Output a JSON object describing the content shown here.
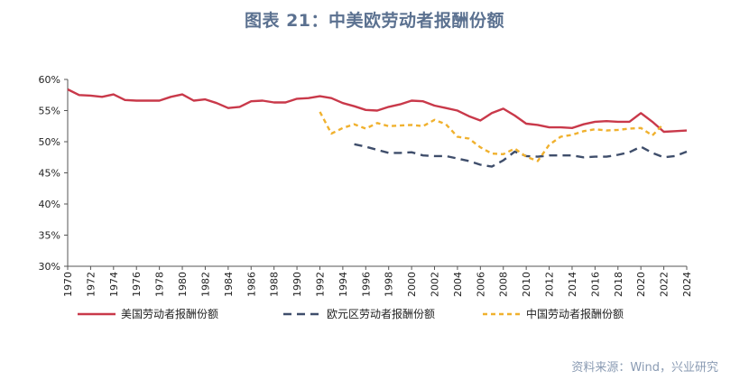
{
  "chart_data": {
    "type": "line",
    "title": "图表 21：中美欧劳动者报酬份额",
    "xlabel": "",
    "ylabel": "",
    "ylim": [
      30,
      60
    ],
    "y_tick_labels": [
      "30%",
      "35%",
      "40%",
      "45%",
      "50%",
      "55%",
      "60%"
    ],
    "y_ticks": [
      30,
      35,
      40,
      45,
      50,
      55,
      60
    ],
    "x_ticks": [
      1970,
      1972,
      1974,
      1976,
      1978,
      1980,
      1982,
      1984,
      1986,
      1988,
      1990,
      1992,
      1994,
      1996,
      1998,
      2000,
      2002,
      2004,
      2006,
      2008,
      2010,
      2012,
      2014,
      2016,
      2018,
      2020,
      2022,
      2024
    ],
    "xlim": [
      1970,
      2024
    ],
    "grid": false,
    "legend_position": "bottom",
    "series": [
      {
        "name": "美国劳动者报酬份额",
        "color": "#c9394a",
        "dash": "solid",
        "x": [
          1970,
          1971,
          1972,
          1973,
          1974,
          1975,
          1976,
          1977,
          1978,
          1979,
          1980,
          1981,
          1982,
          1983,
          1984,
          1985,
          1986,
          1987,
          1988,
          1989,
          1990,
          1991,
          1992,
          1993,
          1994,
          1995,
          1996,
          1997,
          1998,
          1999,
          2000,
          2001,
          2002,
          2003,
          2004,
          2005,
          2006,
          2007,
          2008,
          2009,
          2010,
          2011,
          2012,
          2013,
          2014,
          2015,
          2016,
          2017,
          2018,
          2019,
          2020,
          2021,
          2022,
          2023,
          2024
        ],
        "values": [
          58.4,
          57.5,
          57.4,
          57.2,
          57.6,
          56.7,
          56.6,
          56.6,
          56.6,
          57.2,
          57.6,
          56.6,
          56.8,
          56.2,
          55.4,
          55.6,
          56.5,
          56.6,
          56.3,
          56.3,
          56.9,
          57.0,
          57.3,
          57.0,
          56.2,
          55.7,
          55.1,
          55.0,
          55.6,
          56.0,
          56.6,
          56.5,
          55.8,
          55.4,
          55.0,
          54.1,
          53.4,
          54.6,
          55.3,
          54.2,
          52.9,
          52.7,
          52.3,
          52.3,
          52.2,
          52.8,
          53.2,
          53.3,
          53.2,
          53.2,
          54.6,
          53.2,
          51.6,
          51.7,
          51.8
        ]
      },
      {
        "name": "欧元区劳动者报酬份额",
        "color": "#3f4e6b",
        "dash": "long",
        "x": [
          1995,
          1996,
          1997,
          1998,
          1999,
          2000,
          2001,
          2002,
          2003,
          2004,
          2005,
          2006,
          2007,
          2008,
          2009,
          2010,
          2011,
          2012,
          2013,
          2014,
          2015,
          2016,
          2017,
          2018,
          2019,
          2020,
          2021,
          2022,
          2023,
          2024
        ],
        "values": [
          49.6,
          49.2,
          48.7,
          48.2,
          48.2,
          48.3,
          47.8,
          47.7,
          47.7,
          47.3,
          46.9,
          46.3,
          46.0,
          47.0,
          48.4,
          47.7,
          47.6,
          47.8,
          47.8,
          47.8,
          47.5,
          47.6,
          47.6,
          47.9,
          48.3,
          49.2,
          48.2,
          47.5,
          47.7,
          48.4
        ]
      },
      {
        "name": "中国劳动者报酬份额",
        "color": "#f0b12e",
        "dash": "short",
        "x": [
          1992,
          1993,
          1994,
          1995,
          1996,
          1997,
          1998,
          1999,
          2000,
          2001,
          2002,
          2003,
          2004,
          2005,
          2006,
          2007,
          2008,
          2009,
          2010,
          2011,
          2012,
          2013,
          2014,
          2015,
          2016,
          2017,
          2018,
          2019,
          2020,
          2021,
          2022
        ],
        "values": [
          54.8,
          51.3,
          52.2,
          52.8,
          52.1,
          53.0,
          52.5,
          52.6,
          52.7,
          52.5,
          53.5,
          52.8,
          50.8,
          50.5,
          49.1,
          48.1,
          48.0,
          48.9,
          47.6,
          46.9,
          49.5,
          50.8,
          51.1,
          51.7,
          52.0,
          51.8,
          51.9,
          52.1,
          52.2,
          51.0,
          52.9
        ]
      }
    ]
  },
  "source": "资料来源：Wind，兴业研究"
}
